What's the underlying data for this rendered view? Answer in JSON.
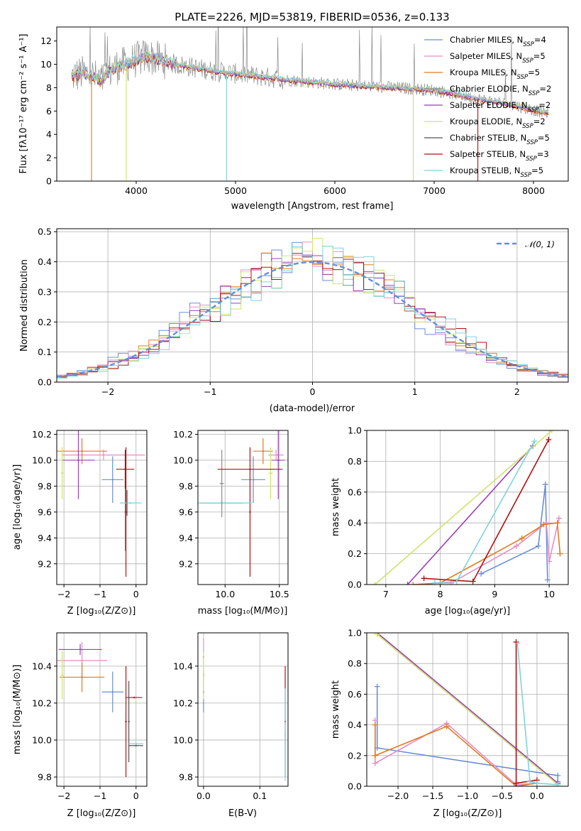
{
  "colors": {
    "chabrier_miles": "#6a8ed6",
    "salpeter_miles": "#e38fc4",
    "kroupa_miles": "#e07b20",
    "chabrier_elodie": "#8c8c8c",
    "salpeter_elodie": "#9b3fb5",
    "kroupa_elodie": "#cfe36b",
    "chabrier_stelib": "#555555",
    "salpeter_stelib": "#b01010",
    "kroupa_stelib": "#7fd3d8",
    "gauss": "#6a8ed6"
  },
  "chart_data": [
    {
      "id": "spectrum",
      "type": "line",
      "title": "PLATE=2226, MJD=53819, FIBERID=0536, z=0.133",
      "xlabel": "wavelength [Angstrom, rest frame]",
      "ylabel": "Flux [fλ10⁻¹⁷ erg cm⁻² s⁻¹ A⁻¹]",
      "xlim": [
        3200,
        8350
      ],
      "ylim": [
        0,
        13.2
      ],
      "xticks": [
        4000,
        5000,
        6000,
        7000,
        8000
      ],
      "yticks": [
        0,
        2,
        4,
        6,
        8,
        10,
        12
      ],
      "grid": false,
      "legend_position": "right",
      "legend": [
        {
          "series": "chabrier_miles",
          "prefix": "Chabrier MILES, N",
          "sub": "SSP",
          "suffix": "=4"
        },
        {
          "series": "salpeter_miles",
          "prefix": "Salpeter MILES, N",
          "sub": "SSP",
          "suffix": "=5"
        },
        {
          "series": "kroupa_miles",
          "prefix": "Kroupa MILES, N",
          "sub": "SSP",
          "suffix": "=5"
        },
        {
          "series": "chabrier_elodie",
          "prefix": "Chabrier ELODIE, N",
          "sub": "SSP",
          "suffix": "=2"
        },
        {
          "series": "salpeter_elodie",
          "prefix": "Salpeter ELODIE, N",
          "sub": "SSP",
          "suffix": "=2"
        },
        {
          "series": "kroupa_elodie",
          "prefix": "Kroupa ELODIE, N",
          "sub": "SSP",
          "suffix": "=2"
        },
        {
          "series": "chabrier_stelib",
          "prefix": "Chabrier STELIB, N",
          "sub": "SSP",
          "suffix": "=5"
        },
        {
          "series": "salpeter_stelib",
          "prefix": "Salpeter STELIB, N",
          "sub": "SSP",
          "suffix": "=3"
        },
        {
          "series": "kroupa_stelib",
          "prefix": "Kroupa STELIB, N",
          "sub": "SSP",
          "suffix": "=5"
        }
      ],
      "continuum": {
        "x": [
          3350,
          3450,
          3550,
          3650,
          3700,
          3800,
          3900,
          4000,
          4100,
          4200,
          4400,
          4600,
          4800,
          5000,
          5200,
          5400,
          5600,
          5800,
          6000,
          6200,
          6400,
          6600,
          6800,
          7000,
          7200,
          7400,
          7600,
          7800,
          8000,
          8100
        ],
        "y": [
          9.0,
          9.2,
          9.1,
          8.5,
          9.2,
          9.8,
          10.0,
          10.4,
          10.7,
          10.5,
          10.0,
          9.7,
          9.4,
          9.2,
          9.0,
          8.8,
          8.6,
          8.45,
          8.3,
          8.2,
          8.1,
          8.0,
          7.9,
          7.8,
          7.5,
          7.1,
          6.8,
          6.5,
          6.1,
          5.9
        ]
      },
      "model_dips": [
        {
          "series": "kroupa_miles",
          "x": 3550,
          "to": 0.0
        },
        {
          "series": "kroupa_elodie",
          "x": 3900,
          "to": 0.0
        },
        {
          "series": "kroupa_stelib",
          "x": 4910,
          "to": 0.0
        },
        {
          "series": "kroupa_elodie",
          "x": 6790,
          "to": 0.0
        },
        {
          "series": "salpeter_stelib",
          "x": 7440,
          "to": 0.0
        }
      ]
    },
    {
      "id": "residuals",
      "type": "histogram",
      "xlabel": "(data-model)/error",
      "ylabel": "Normed distribution",
      "xlim": [
        -2.5,
        2.5
      ],
      "ylim": [
        0,
        0.51
      ],
      "xticks": [
        -2,
        -1,
        0,
        1,
        2
      ],
      "yticks": [
        0.0,
        0.1,
        0.2,
        0.3,
        0.4,
        0.5
      ],
      "grid": true,
      "bin_width": 0.1,
      "legend_position": "top-right",
      "legend_label": "𝒩(0, 1)",
      "reference_curve": "standard normal",
      "series": [
        {
          "name": "chabrier_miles",
          "peak": 0.42
        },
        {
          "name": "salpeter_miles",
          "peak": 0.41
        },
        {
          "name": "kroupa_miles",
          "peak": 0.41
        },
        {
          "name": "salpeter_elodie",
          "peak": 0.43
        },
        {
          "name": "kroupa_elodie",
          "peak": 0.48
        },
        {
          "name": "salpeter_stelib",
          "peak": 0.42
        },
        {
          "name": "kroupa_stelib",
          "peak": 0.4
        }
      ]
    },
    {
      "id": "age_vs_Z",
      "type": "errorbar",
      "xlabel": "Z [log₁₀(Z/Z⊙)]",
      "ylabel": "age  [log₁₀(age/yr)]",
      "xlim": [
        -2.2,
        0.3
      ],
      "ylim": [
        9.04,
        10.23
      ],
      "xticks": [
        -2,
        -1,
        0
      ],
      "yticks": [
        9.2,
        9.4,
        9.6,
        9.8,
        10.0,
        10.2
      ],
      "grid": true,
      "points": [
        {
          "series": "chabrier_miles",
          "x": -0.65,
          "xerr": 0.3,
          "y": 9.85,
          "yerr": 0.18
        },
        {
          "series": "salpeter_miles",
          "x": -0.9,
          "xerr": 1.15,
          "y": 10.04,
          "yerr": 0.04
        },
        {
          "series": "kroupa_miles",
          "x": -1.5,
          "xerr": 0.7,
          "y": 10.07,
          "yerr": 0.1
        },
        {
          "series": "chabrier_elodie",
          "x": -0.3,
          "xerr": 0.02,
          "y": 9.6,
          "yerr": 0.3
        },
        {
          "series": "salpeter_elodie",
          "x": -1.6,
          "xerr": 0.45,
          "y": 10.0,
          "yerr": 0.3
        },
        {
          "series": "kroupa_elodie",
          "x": -2.05,
          "xerr": 0.03,
          "y": 9.9,
          "yerr": 0.2
        },
        {
          "series": "chabrier_stelib",
          "x": -0.25,
          "xerr": 0.02,
          "y": 9.67,
          "yerr": 0.1
        },
        {
          "series": "salpeter_stelib",
          "x": -0.3,
          "xerr": 0.25,
          "y": 9.93,
          "yerr": 0.15
        },
        {
          "series": "salpeter_stelib",
          "x": -0.28,
          "xerr": 0.0,
          "y": 9.6,
          "yerr": 0.5
        },
        {
          "series": "kroupa_stelib",
          "x": -0.15,
          "xerr": 0.3,
          "y": 9.67,
          "yerr": 0.0
        }
      ]
    },
    {
      "id": "age_vs_mass",
      "type": "errorbar",
      "xlabel": "mass [log₁₀(M/M⊙)]",
      "ylabel": "",
      "xlim": [
        9.75,
        10.58
      ],
      "ylim": [
        9.04,
        10.23
      ],
      "xticks": [
        10.0,
        10.5
      ],
      "yticks": [
        9.2,
        9.4,
        9.6,
        9.8,
        10.0,
        10.2
      ],
      "grid": true,
      "points": [
        {
          "series": "chabrier_miles",
          "x": 10.26,
          "xerr": 0.11,
          "y": 9.85,
          "yerr": 0.18
        },
        {
          "series": "salpeter_miles",
          "x": 10.47,
          "xerr": 0.07,
          "y": 10.04,
          "yerr": 0.04
        },
        {
          "series": "kroupa_miles",
          "x": 10.35,
          "xerr": 0.09,
          "y": 10.07,
          "yerr": 0.1
        },
        {
          "series": "chabrier_elodie",
          "x": 9.97,
          "xerr": 0.02,
          "y": 9.82,
          "yerr": 0.26
        },
        {
          "series": "salpeter_elodie",
          "x": 10.49,
          "xerr": 0.06,
          "y": 10.0,
          "yerr": 0.3
        },
        {
          "series": "kroupa_elodie",
          "x": 10.42,
          "xerr": 0.02,
          "y": 9.9,
          "yerr": 0.2
        },
        {
          "series": "chabrier_stelib",
          "x": 9.97,
          "xerr": 0.2,
          "y": 9.67,
          "yerr": 0.0
        },
        {
          "series": "salpeter_stelib",
          "x": 10.23,
          "xerr": 0.0,
          "y": 9.6,
          "yerr": 0.5
        },
        {
          "series": "salpeter_stelib",
          "x": 10.23,
          "xerr": 0.3,
          "y": 9.93,
          "yerr": 0.0
        },
        {
          "series": "kroupa_stelib",
          "x": 10.0,
          "xerr": 0.25,
          "y": 9.67,
          "yerr": 0.0
        }
      ]
    },
    {
      "id": "weight_vs_age",
      "type": "line",
      "xlabel": "age  [log₁₀(age/yr)]",
      "ylabel": "mass weight",
      "xlim": [
        6.65,
        10.35
      ],
      "ylim": [
        0,
        1.0
      ],
      "xticks": [
        7,
        8,
        9,
        10
      ],
      "yticks": [
        0.0,
        0.2,
        0.4,
        0.6,
        0.8,
        1.0
      ],
      "grid": true,
      "series": [
        {
          "name": "chabrier_miles",
          "x": [
            8.75,
            9.8,
            9.93,
            9.97
          ],
          "y": [
            0.07,
            0.25,
            0.65,
            0.03
          ]
        },
        {
          "name": "salpeter_miles",
          "x": [
            7.9,
            8.2,
            9.4,
            9.95,
            10.0,
            10.18
          ],
          "y": [
            0.01,
            0.01,
            0.25,
            0.4,
            0.15,
            0.43
          ]
        },
        {
          "name": "kroupa_miles",
          "x": [
            7.5,
            8.0,
            9.5,
            9.9,
            10.15,
            10.2
          ],
          "y": [
            0.0,
            0.01,
            0.3,
            0.39,
            0.4,
            0.2
          ]
        },
        {
          "name": "salpeter_elodie",
          "x": [
            7.4,
            9.7
          ],
          "y": [
            0.0,
            0.9
          ]
        },
        {
          "name": "kroupa_elodie",
          "x": [
            6.8,
            10.05
          ],
          "y": [
            0.0,
            1.0
          ]
        },
        {
          "name": "salpeter_stelib",
          "x": [
            7.7,
            8.6,
            9.99
          ],
          "y": [
            0.04,
            0.02,
            0.94
          ]
        },
        {
          "name": "kroupa_stelib",
          "x": [
            7.9,
            8.3,
            9.73
          ],
          "y": [
            0.01,
            0.02,
            0.93
          ]
        }
      ]
    },
    {
      "id": "mass_vs_Z",
      "type": "errorbar",
      "xlabel": "Z [log₁₀(Z/Z⊙)]",
      "ylabel": "mass [log₁₀(M/M⊙)]",
      "xlim": [
        -2.2,
        0.3
      ],
      "ylim": [
        9.75,
        10.58
      ],
      "xticks": [
        -2,
        -1,
        0
      ],
      "yticks": [
        9.8,
        10.0,
        10.2,
        10.4
      ],
      "grid": true,
      "points": [
        {
          "series": "chabrier_miles",
          "x": -0.65,
          "xerr": 0.3,
          "y": 10.26,
          "yerr": 0.11
        },
        {
          "series": "salpeter_miles",
          "x": -1.5,
          "xerr": 0.7,
          "y": 10.43,
          "yerr": 0.1
        },
        {
          "series": "kroupa_miles",
          "x": -1.5,
          "xerr": 0.62,
          "y": 10.34,
          "yerr": 0.08
        },
        {
          "series": "salpeter_elodie",
          "x": -1.55,
          "xerr": 0.6,
          "y": 10.49,
          "yerr": 0.03
        },
        {
          "series": "kroupa_elodie",
          "x": -2.05,
          "xerr": 0.03,
          "y": 10.35,
          "yerr": 0.13
        },
        {
          "series": "chabrier_stelib",
          "x": -0.2,
          "xerr": 0.0,
          "y": 10.1,
          "yerr": 0.22
        },
        {
          "series": "salpeter_stelib",
          "x": -0.28,
          "xerr": 0.0,
          "y": 10.1,
          "yerr": 0.3
        },
        {
          "series": "salpeter_stelib",
          "x": -0.05,
          "xerr": 0.22,
          "y": 10.23,
          "yerr": 0.0
        },
        {
          "series": "chabrier_stelib",
          "x": 0.0,
          "xerr": 0.2,
          "y": 9.97,
          "yerr": 0.0
        },
        {
          "series": "kroupa_stelib",
          "x": 0.0,
          "xerr": 0.2,
          "y": 9.98,
          "yerr": 0.0
        }
      ]
    },
    {
      "id": "mass_vs_ebv",
      "type": "errorbar",
      "xlabel": "E(B-V)",
      "ylabel": "",
      "xlim": [
        -0.01,
        0.15
      ],
      "ylim": [
        9.75,
        10.58
      ],
      "xticks": [
        0.0,
        0.1
      ],
      "yticks": [
        9.8,
        10.0,
        10.2,
        10.4
      ],
      "grid": true,
      "points": [
        {
          "series": "chabrier_miles",
          "x": 0.0,
          "xerr": 0.0,
          "y": 10.26,
          "yerr": 0.11
        },
        {
          "series": "salpeter_miles",
          "x": 0.0,
          "xerr": 0.0,
          "y": 10.45,
          "yerr": 0.1
        },
        {
          "series": "kroupa_elodie",
          "x": 0.0,
          "xerr": 0.0,
          "y": 10.35,
          "yerr": 0.13
        },
        {
          "series": "salpeter_stelib",
          "x": 0.145,
          "xerr": 0.0,
          "y": 10.1,
          "yerr": 0.3
        },
        {
          "series": "kroupa_stelib",
          "x": 0.145,
          "xerr": 0.0,
          "y": 10.03,
          "yerr": 0.25
        }
      ]
    },
    {
      "id": "weight_vs_Z",
      "type": "line",
      "xlabel": "Z [log₁₀(Z/Z⊙)]",
      "ylabel": "mass weight",
      "xlim": [
        -2.45,
        0.45
      ],
      "ylim": [
        0,
        1.0
      ],
      "xticks": [
        -2.0,
        -1.5,
        -1.0,
        -0.5,
        0.0
      ],
      "yticks": [
        0.0,
        0.2,
        0.4,
        0.6,
        0.8,
        1.0
      ],
      "grid": true,
      "series": [
        {
          "name": "chabrier_miles",
          "x": [
            -2.3,
            -2.3,
            0.3,
            0.3
          ],
          "y": [
            0.65,
            0.25,
            0.07,
            0.03
          ]
        },
        {
          "name": "salpeter_miles",
          "x": [
            -2.33,
            -2.33,
            -1.3,
            -0.3,
            0.0
          ],
          "y": [
            0.43,
            0.15,
            0.41,
            0.01,
            0.02
          ]
        },
        {
          "name": "kroupa_miles",
          "x": [
            -2.33,
            -2.33,
            -1.3,
            -0.3,
            0.0
          ],
          "y": [
            0.4,
            0.2,
            0.39,
            0.0,
            0.02
          ]
        },
        {
          "name": "salpeter_elodie",
          "x": [
            -2.3,
            0.3
          ],
          "y": [
            1.0,
            0.02
          ]
        },
        {
          "name": "kroupa_elodie",
          "x": [
            -2.3,
            0.3
          ],
          "y": [
            0.99,
            0.01
          ]
        },
        {
          "name": "salpeter_stelib",
          "x": [
            -0.3,
            -0.3,
            0.0
          ],
          "y": [
            0.94,
            0.02,
            0.04
          ]
        },
        {
          "name": "kroupa_stelib",
          "x": [
            -0.28,
            -0.1,
            0.0,
            0.3
          ],
          "y": [
            0.93,
            0.03,
            0.02,
            0.01
          ]
        }
      ]
    }
  ]
}
